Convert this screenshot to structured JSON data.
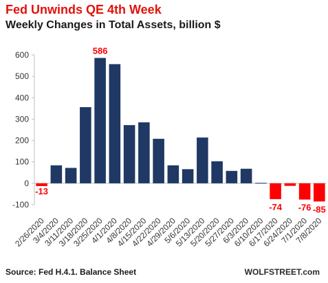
{
  "header": {
    "title": "Fed Unwinds QE 4th Week",
    "subtitle": "Weekly Changes in Total Assets, billion $"
  },
  "footer": {
    "source": "Source: Fed H.4.1. Balance Sheet",
    "brand": "WOLFSTREET.com"
  },
  "colors": {
    "positive": "#1f3864",
    "negative": "#ff0000",
    "title": "#e3120b"
  },
  "chart_data": {
    "type": "bar",
    "title": "Fed Unwinds QE 4th Week",
    "subtitle": "Weekly Changes in Total Assets, billion $",
    "xlabel": "",
    "ylabel": "",
    "ylim": [
      -100,
      600
    ],
    "yticks": [
      -100,
      0,
      100,
      200,
      300,
      400,
      500,
      600
    ],
    "grid": false,
    "categories": [
      "2/26/2020",
      "3/4/2020",
      "3/11/2020",
      "3/18/2020",
      "3/25/2020",
      "4/1/2020",
      "4/8/2020",
      "4/15/2020",
      "4/22/2020",
      "4/29/2020",
      "5/6/2020",
      "5/13/2020",
      "5/20/2020",
      "5/27/2020",
      "6/3/2020",
      "6/10/2020",
      "6/17/2020",
      "6/24/2020",
      "7/1/2020",
      "7/8/2020"
    ],
    "values": [
      -13,
      84,
      72,
      356,
      586,
      557,
      272,
      285,
      208,
      84,
      66,
      214,
      103,
      58,
      68,
      2,
      -74,
      -12,
      -76,
      -85
    ],
    "data_labels": [
      {
        "index": 0,
        "text": "-13"
      },
      {
        "index": 4,
        "text": "586"
      },
      {
        "index": 16,
        "text": "-74"
      },
      {
        "index": 18,
        "text": "-76"
      },
      {
        "index": 19,
        "text": "-85"
      }
    ]
  }
}
